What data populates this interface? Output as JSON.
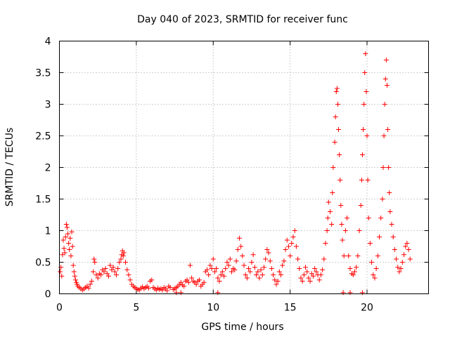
{
  "chart_data": {
    "type": "scatter",
    "title": "Day 040 of 2023, SRMTID for receiver func",
    "xlabel": "GPS time / hours",
    "ylabel": "SRMTID / TECUs",
    "xlim": [
      0,
      24
    ],
    "ylim": [
      0,
      4
    ],
    "xticks": [
      0,
      5,
      10,
      15,
      20
    ],
    "yticks": [
      0,
      0.5,
      1,
      1.5,
      2,
      2.5,
      3,
      3.5,
      4
    ],
    "xtick_labels": [
      "0",
      "5",
      "10",
      "15",
      "20"
    ],
    "ytick_labels": [
      "0",
      "0.5",
      "1",
      "1.5",
      "2",
      "2.5",
      "3",
      "3.5",
      "4"
    ],
    "grid": true,
    "marker": "plus",
    "color": "#ff0000",
    "series": [
      {
        "name": "SRMTID",
        "points": [
          [
            0.05,
            0.35
          ],
          [
            0.1,
            0.42
          ],
          [
            0.15,
            0.28
          ],
          [
            0.2,
            0.62
          ],
          [
            0.25,
            0.85
          ],
          [
            0.3,
            0.72
          ],
          [
            0.35,
            0.65
          ],
          [
            0.4,
            0.9
          ],
          [
            0.45,
            1.1
          ],
          [
            0.5,
            1.05
          ],
          [
            0.55,
            0.95
          ],
          [
            0.6,
            0.8
          ],
          [
            0.65,
            0.7
          ],
          [
            0.7,
            0.88
          ],
          [
            0.75,
            0.6
          ],
          [
            0.8,
            0.98
          ],
          [
            0.85,
            0.75
          ],
          [
            0.9,
            0.45
          ],
          [
            0.95,
            0.35
          ],
          [
            1.0,
            0.28
          ],
          [
            1.05,
            0.22
          ],
          [
            1.1,
            0.18
          ],
          [
            1.15,
            0.15
          ],
          [
            1.2,
            0.12
          ],
          [
            1.3,
            0.1
          ],
          [
            1.4,
            0.08
          ],
          [
            1.5,
            0.06
          ],
          [
            1.6,
            0.08
          ],
          [
            1.7,
            0.1
          ],
          [
            1.8,
            0.12
          ],
          [
            1.9,
            0.09
          ],
          [
            2.0,
            0.15
          ],
          [
            2.1,
            0.2
          ],
          [
            2.2,
            0.35
          ],
          [
            2.25,
            0.55
          ],
          [
            2.3,
            0.5
          ],
          [
            2.4,
            0.3
          ],
          [
            2.5,
            0.25
          ],
          [
            2.6,
            0.32
          ],
          [
            2.7,
            0.3
          ],
          [
            2.8,
            0.38
          ],
          [
            2.9,
            0.35
          ],
          [
            3.0,
            0.4
          ],
          [
            3.1,
            0.32
          ],
          [
            3.2,
            0.28
          ],
          [
            3.3,
            0.45
          ],
          [
            3.4,
            0.38
          ],
          [
            3.5,
            0.42
          ],
          [
            3.6,
            0.35
          ],
          [
            3.7,
            0.3
          ],
          [
            3.8,
            0.4
          ],
          [
            3.9,
            0.5
          ],
          [
            4.0,
            0.55
          ],
          [
            4.05,
            0.62
          ],
          [
            4.1,
            0.68
          ],
          [
            4.15,
            0.6
          ],
          [
            4.2,
            0.65
          ],
          [
            4.3,
            0.5
          ],
          [
            4.4,
            0.38
          ],
          [
            4.5,
            0.3
          ],
          [
            4.6,
            0.22
          ],
          [
            4.7,
            0.15
          ],
          [
            4.8,
            0.12
          ],
          [
            4.9,
            0.1
          ],
          [
            5.0,
            0.08
          ],
          [
            5.1,
            0.07
          ],
          [
            5.2,
            0.06
          ],
          [
            5.3,
            0.09
          ],
          [
            5.4,
            0.11
          ],
          [
            5.5,
            0.08
          ],
          [
            5.6,
            0.1
          ],
          [
            5.7,
            0.12
          ],
          [
            5.8,
            0.09
          ],
          [
            5.9,
            0.2
          ],
          [
            6.0,
            0.22
          ],
          [
            6.1,
            0.1
          ],
          [
            6.2,
            0.08
          ],
          [
            6.3,
            0.06
          ],
          [
            6.4,
            0.09
          ],
          [
            6.5,
            0.07
          ],
          [
            6.6,
            0.08
          ],
          [
            6.7,
            0.06
          ],
          [
            6.8,
            0.1
          ],
          [
            6.9,
            0.08
          ],
          [
            7.0,
            0.05
          ],
          [
            7.1,
            0.12
          ],
          [
            7.2,
            0.1
          ],
          [
            7.4,
            0.07
          ],
          [
            7.5,
            0.08
          ],
          [
            7.6,
            0.1
          ],
          [
            7.7,
            0.12
          ],
          [
            7.8,
            0.15
          ],
          [
            7.9,
            0.18
          ],
          [
            8.0,
            0.14
          ],
          [
            8.1,
            0.12
          ],
          [
            8.2,
            0.2
          ],
          [
            8.3,
            0.22
          ],
          [
            8.4,
            0.18
          ],
          [
            8.5,
            0.45
          ],
          [
            8.6,
            0.25
          ],
          [
            8.7,
            0.2
          ],
          [
            8.8,
            0.18
          ],
          [
            8.9,
            0.15
          ],
          [
            9.0,
            0.2
          ],
          [
            9.1,
            0.22
          ],
          [
            9.2,
            0.12
          ],
          [
            9.3,
            0.15
          ],
          [
            9.4,
            0.18
          ],
          [
            9.5,
            0.35
          ],
          [
            9.6,
            0.38
          ],
          [
            9.7,
            0.3
          ],
          [
            9.8,
            0.45
          ],
          [
            9.9,
            0.4
          ],
          [
            10.0,
            0.55
          ],
          [
            10.1,
            0.35
          ],
          [
            10.2,
            0.4
          ],
          [
            10.3,
            0.25
          ],
          [
            10.4,
            0.2
          ],
          [
            10.5,
            0.3
          ],
          [
            10.6,
            0.35
          ],
          [
            10.7,
            0.28
          ],
          [
            10.8,
            0.4
          ],
          [
            10.9,
            0.5
          ],
          [
            11.0,
            0.45
          ],
          [
            11.1,
            0.55
          ],
          [
            11.2,
            0.35
          ],
          [
            11.3,
            0.4
          ],
          [
            11.4,
            0.38
          ],
          [
            11.5,
            0.52
          ],
          [
            11.6,
            0.7
          ],
          [
            11.7,
            0.88
          ],
          [
            11.8,
            0.75
          ],
          [
            11.9,
            0.6
          ],
          [
            12.0,
            0.45
          ],
          [
            12.1,
            0.3
          ],
          [
            12.2,
            0.25
          ],
          [
            12.3,
            0.4
          ],
          [
            12.4,
            0.35
          ],
          [
            12.5,
            0.5
          ],
          [
            12.6,
            0.62
          ],
          [
            12.7,
            0.42
          ],
          [
            12.8,
            0.3
          ],
          [
            12.9,
            0.35
          ],
          [
            13.0,
            0.25
          ],
          [
            13.1,
            0.38
          ],
          [
            13.2,
            0.3
          ],
          [
            13.3,
            0.42
          ],
          [
            13.4,
            0.55
          ],
          [
            13.5,
            0.7
          ],
          [
            13.6,
            0.65
          ],
          [
            13.7,
            0.52
          ],
          [
            13.8,
            0.4
          ],
          [
            13.9,
            0.3
          ],
          [
            14.0,
            0.22
          ],
          [
            14.1,
            0.15
          ],
          [
            14.2,
            0.2
          ],
          [
            14.3,
            0.35
          ],
          [
            14.4,
            0.3
          ],
          [
            14.5,
            0.45
          ],
          [
            14.6,
            0.52
          ],
          [
            14.7,
            0.7
          ],
          [
            14.8,
            0.85
          ],
          [
            14.9,
            0.75
          ],
          [
            15.0,
            0.6
          ],
          [
            15.1,
            0.8
          ],
          [
            15.2,
            0.9
          ],
          [
            15.3,
            1.0
          ],
          [
            15.4,
            0.75
          ],
          [
            15.5,
            0.55
          ],
          [
            15.6,
            0.4
          ],
          [
            15.7,
            0.25
          ],
          [
            15.8,
            0.2
          ],
          [
            15.9,
            0.3
          ],
          [
            16.0,
            0.42
          ],
          [
            16.1,
            0.35
          ],
          [
            16.2,
            0.25
          ],
          [
            16.3,
            0.2
          ],
          [
            16.4,
            0.32
          ],
          [
            16.5,
            0.28
          ],
          [
            16.6,
            0.4
          ],
          [
            16.7,
            0.35
          ],
          [
            16.8,
            0.3
          ],
          [
            16.9,
            0.22
          ],
          [
            17.0,
            0.3
          ],
          [
            17.1,
            0.38
          ],
          [
            17.2,
            0.55
          ],
          [
            17.3,
            0.8
          ],
          [
            17.4,
            1.0
          ],
          [
            17.45,
            1.2
          ],
          [
            17.5,
            1.45
          ],
          [
            17.6,
            1.3
          ],
          [
            17.7,
            1.1
          ],
          [
            17.75,
            1.6
          ],
          [
            17.8,
            2.0
          ],
          [
            17.9,
            2.4
          ],
          [
            17.95,
            2.8
          ],
          [
            18.0,
            3.2
          ],
          [
            18.05,
            3.25
          ],
          [
            18.1,
            3.0
          ],
          [
            18.15,
            2.6
          ],
          [
            18.2,
            2.2
          ],
          [
            18.25,
            1.8
          ],
          [
            18.3,
            1.4
          ],
          [
            18.35,
            1.1
          ],
          [
            18.4,
            0.85
          ],
          [
            18.5,
            0.6
          ],
          [
            18.6,
            1.0
          ],
          [
            18.7,
            1.2
          ],
          [
            18.8,
            0.6
          ],
          [
            18.9,
            0.4
          ],
          [
            19.0,
            0.32
          ],
          [
            19.1,
            0.3
          ],
          [
            19.2,
            0.35
          ],
          [
            19.3,
            0.42
          ],
          [
            19.4,
            0.6
          ],
          [
            19.5,
            1.0
          ],
          [
            19.6,
            1.4
          ],
          [
            19.65,
            1.8
          ],
          [
            19.7,
            2.2
          ],
          [
            19.75,
            2.6
          ],
          [
            19.8,
            3.0
          ],
          [
            19.85,
            3.5
          ],
          [
            19.9,
            3.8
          ],
          [
            19.95,
            3.2
          ],
          [
            20.0,
            2.5
          ],
          [
            20.05,
            1.8
          ],
          [
            20.1,
            1.2
          ],
          [
            20.2,
            0.8
          ],
          [
            20.3,
            0.5
          ],
          [
            20.4,
            0.3
          ],
          [
            20.5,
            0.25
          ],
          [
            20.6,
            0.4
          ],
          [
            20.7,
            0.6
          ],
          [
            20.8,
            0.9
          ],
          [
            20.9,
            1.2
          ],
          [
            21.0,
            1.5
          ],
          [
            21.05,
            2.0
          ],
          [
            21.1,
            2.5
          ],
          [
            21.15,
            3.0
          ],
          [
            21.2,
            3.4
          ],
          [
            21.25,
            3.7
          ],
          [
            21.3,
            3.3
          ],
          [
            21.35,
            2.6
          ],
          [
            21.4,
            2.0
          ],
          [
            21.45,
            1.6
          ],
          [
            21.5,
            1.3
          ],
          [
            21.6,
            1.1
          ],
          [
            21.7,
            0.9
          ],
          [
            21.8,
            0.7
          ],
          [
            21.9,
            0.55
          ],
          [
            22.0,
            0.42
          ],
          [
            22.1,
            0.35
          ],
          [
            22.2,
            0.4
          ],
          [
            22.3,
            0.5
          ],
          [
            22.4,
            0.62
          ],
          [
            22.5,
            0.75
          ],
          [
            22.6,
            0.8
          ],
          [
            22.7,
            0.7
          ],
          [
            22.8,
            0.55
          ]
        ]
      }
    ],
    "baseline_points": [
      [
        7.6,
        0.02
      ],
      [
        7.9,
        0.02
      ],
      [
        10.3,
        0.02
      ],
      [
        18.45,
        0.02
      ],
      [
        18.9,
        0.02
      ],
      [
        19.7,
        0.02
      ]
    ]
  }
}
